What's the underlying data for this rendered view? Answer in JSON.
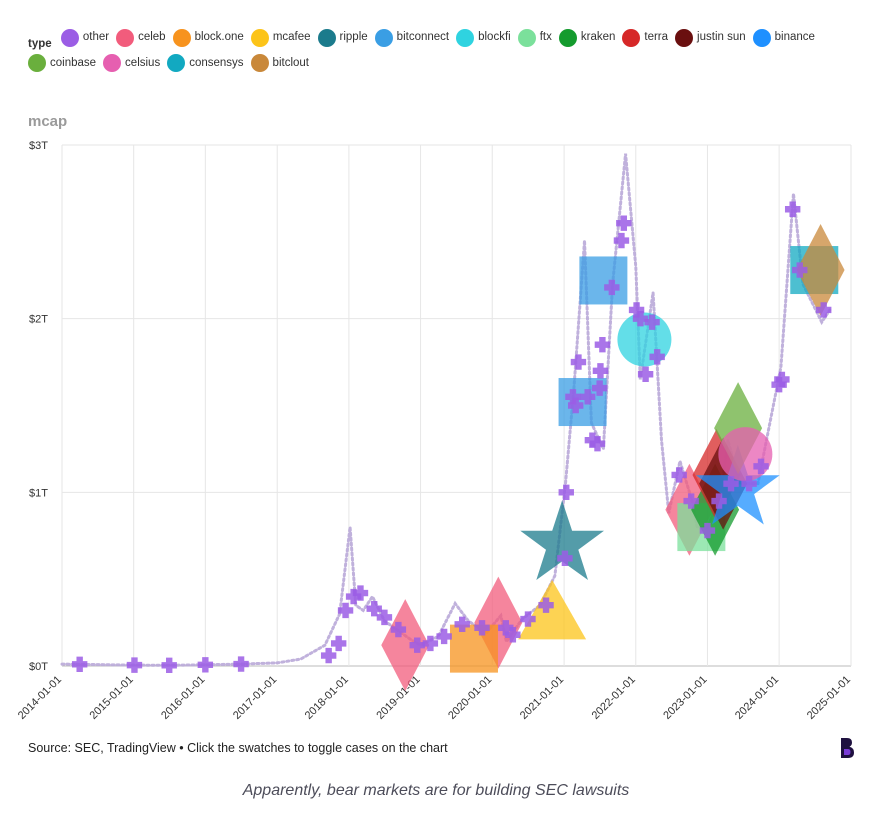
{
  "legend": {
    "title": "type",
    "items": [
      {
        "label": "other",
        "color": "#9b5de5"
      },
      {
        "label": "celeb",
        "color": "#f25c7c"
      },
      {
        "label": "block.one",
        "color": "#f7931e"
      },
      {
        "label": "mcafee",
        "color": "#fcc419"
      },
      {
        "label": "ripple",
        "color": "#1b7b8c"
      },
      {
        "label": "bitconnect",
        "color": "#3a9ee4"
      },
      {
        "label": "blockfi",
        "color": "#2fd3e0"
      },
      {
        "label": "ftx",
        "color": "#7be09b"
      },
      {
        "label": "kraken",
        "color": "#149b2e"
      },
      {
        "label": "terra",
        "color": "#d62828"
      },
      {
        "label": "justin sun",
        "color": "#6a0f0f"
      },
      {
        "label": "binance",
        "color": "#1e90ff"
      },
      {
        "label": "coinbase",
        "color": "#6aaf3d"
      },
      {
        "label": "celsius",
        "color": "#e65fb0"
      },
      {
        "label": "consensys",
        "color": "#12a9c1"
      },
      {
        "label": "bitclout",
        "color": "#c9883a"
      }
    ]
  },
  "chart_data": {
    "type": "scatter",
    "ylabel": "mcap",
    "y_ticks": [
      "$0T",
      "$1T",
      "$2T",
      "$3T"
    ],
    "ylim": [
      0,
      3
    ],
    "xlim": [
      "2014-01-01",
      "2025-01-01"
    ],
    "x_ticks": [
      "2014-01-01",
      "2015-01-01",
      "2016-01-01",
      "2017-01-01",
      "2018-01-01",
      "2019-01-01",
      "2020-01-01",
      "2021-01-01",
      "2022-01-01",
      "2023-01-01",
      "2024-01-01",
      "2025-01-01"
    ],
    "grid": true,
    "market_cap_line": [
      [
        "2014-01-01",
        0.011
      ],
      [
        "2014-07-01",
        0.008
      ],
      [
        "2015-01-01",
        0.005
      ],
      [
        "2015-07-01",
        0.004
      ],
      [
        "2016-01-01",
        0.007
      ],
      [
        "2016-07-01",
        0.011
      ],
      [
        "2017-01-01",
        0.018
      ],
      [
        "2017-05-01",
        0.04
      ],
      [
        "2017-09-01",
        0.12
      ],
      [
        "2017-11-15",
        0.3
      ],
      [
        "2018-01-07",
        0.8
      ],
      [
        "2018-02-05",
        0.35
      ],
      [
        "2018-03-15",
        0.32
      ],
      [
        "2018-05-01",
        0.4
      ],
      [
        "2018-07-01",
        0.26
      ],
      [
        "2018-09-01",
        0.21
      ],
      [
        "2018-11-15",
        0.15
      ],
      [
        "2019-01-01",
        0.12
      ],
      [
        "2019-04-01",
        0.17
      ],
      [
        "2019-06-26",
        0.36
      ],
      [
        "2019-09-01",
        0.26
      ],
      [
        "2019-12-01",
        0.19
      ],
      [
        "2020-02-14",
        0.29
      ],
      [
        "2020-03-13",
        0.14
      ],
      [
        "2020-06-01",
        0.27
      ],
      [
        "2020-09-01",
        0.35
      ],
      [
        "2020-11-15",
        0.52
      ],
      [
        "2021-01-08",
        1.05
      ],
      [
        "2021-02-20",
        1.6
      ],
      [
        "2021-04-15",
        2.45
      ],
      [
        "2021-05-20",
        1.4
      ],
      [
        "2021-07-20",
        1.25
      ],
      [
        "2021-09-05",
        2.2
      ],
      [
        "2021-11-10",
        2.95
      ],
      [
        "2022-01-01",
        2.3
      ],
      [
        "2022-01-24",
        1.65
      ],
      [
        "2022-03-30",
        2.15
      ],
      [
        "2022-05-12",
        1.3
      ],
      [
        "2022-06-18",
        0.88
      ],
      [
        "2022-08-14",
        1.18
      ],
      [
        "2022-10-15",
        0.95
      ],
      [
        "2022-11-10",
        0.8
      ],
      [
        "2023-01-01",
        0.8
      ],
      [
        "2023-03-10",
        0.98
      ],
      [
        "2023-04-15",
        1.3
      ],
      [
        "2023-06-15",
        1.05
      ],
      [
        "2023-09-15",
        1.05
      ],
      [
        "2023-11-15",
        1.4
      ],
      [
        "2024-01-10",
        1.72
      ],
      [
        "2024-03-14",
        2.72
      ],
      [
        "2024-05-01",
        2.2
      ],
      [
        "2024-08-05",
        1.98
      ],
      [
        "2024-09-15",
        2.05
      ]
    ],
    "cases": [
      {
        "type": "other",
        "marker": "cross",
        "points": [
          [
            "2014-04-01",
            0.01
          ],
          [
            "2015-01-05",
            0.005
          ],
          [
            "2015-07-01",
            0.004
          ],
          [
            "2016-01-01",
            0.007
          ],
          [
            "2016-07-01",
            0.011
          ],
          [
            "2017-09-20",
            0.06
          ],
          [
            "2017-11-10",
            0.13
          ],
          [
            "2017-12-15",
            0.32
          ],
          [
            "2018-01-25",
            0.4
          ],
          [
            "2018-03-01",
            0.42
          ],
          [
            "2018-05-10",
            0.33
          ],
          [
            "2018-07-01",
            0.28
          ],
          [
            "2018-09-10",
            0.21
          ],
          [
            "2018-12-15",
            0.12
          ],
          [
            "2019-02-20",
            0.13
          ],
          [
            "2019-05-01",
            0.17
          ],
          [
            "2019-08-01",
            0.24
          ],
          [
            "2019-11-10",
            0.22
          ],
          [
            "2020-03-10",
            0.22
          ],
          [
            "2020-04-15",
            0.18
          ],
          [
            "2020-07-01",
            0.27
          ],
          [
            "2020-10-01",
            0.35
          ],
          [
            "2021-01-12",
            1.0
          ],
          [
            "2021-01-05",
            0.62
          ],
          [
            "2021-02-15",
            1.55
          ],
          [
            "2021-03-01",
            1.5
          ],
          [
            "2021-03-15",
            1.75
          ],
          [
            "2021-05-01",
            1.55
          ],
          [
            "2021-05-25",
            1.3
          ],
          [
            "2021-06-20",
            1.28
          ],
          [
            "2021-07-01",
            1.6
          ],
          [
            "2021-07-05",
            1.7
          ],
          [
            "2021-07-15",
            1.85
          ],
          [
            "2021-09-01",
            2.18
          ],
          [
            "2021-11-01",
            2.55
          ],
          [
            "2021-10-20",
            2.45
          ],
          [
            "2022-01-05",
            2.05
          ],
          [
            "2022-01-25",
            2.0
          ],
          [
            "2022-02-20",
            1.68
          ],
          [
            "2022-03-25",
            1.98
          ],
          [
            "2022-04-20",
            1.78
          ],
          [
            "2022-08-10",
            1.1
          ],
          [
            "2022-10-10",
            0.95
          ],
          [
            "2023-01-01",
            0.78
          ],
          [
            "2023-03-01",
            0.95
          ],
          [
            "2023-05-01",
            1.05
          ],
          [
            "2023-08-01",
            1.05
          ],
          [
            "2023-10-01",
            1.15
          ],
          [
            "2024-01-01",
            1.62
          ],
          [
            "2024-01-15",
            1.65
          ],
          [
            "2024-03-10",
            2.63
          ],
          [
            "2024-04-15",
            2.28
          ],
          [
            "2024-08-15",
            2.05
          ]
        ]
      },
      {
        "type": "celeb",
        "marker": "diamond",
        "points": [
          [
            "2018-10-15",
            0.12
          ],
          [
            "2020-02-01",
            0.25
          ],
          [
            "2022-10-01",
            0.9
          ]
        ]
      },
      {
        "type": "block.one",
        "marker": "square",
        "points": [
          [
            "2019-09-30",
            0.1
          ]
        ]
      },
      {
        "type": "mcafee",
        "marker": "triangle",
        "points": [
          [
            "2020-11-01",
            0.3
          ]
        ]
      },
      {
        "type": "ripple",
        "marker": "star",
        "points": [
          [
            "2020-12-22",
            0.7
          ]
        ]
      },
      {
        "type": "bitconnect",
        "marker": "square",
        "points": [
          [
            "2021-04-05",
            1.52
          ],
          [
            "2021-07-20",
            2.22
          ]
        ]
      },
      {
        "type": "blockfi",
        "marker": "circle",
        "points": [
          [
            "2022-02-14",
            1.88
          ]
        ]
      },
      {
        "type": "ftx",
        "marker": "square",
        "points": [
          [
            "2022-12-01",
            0.8
          ]
        ]
      },
      {
        "type": "kraken",
        "marker": "diamond",
        "points": [
          [
            "2023-02-09",
            0.9
          ]
        ]
      },
      {
        "type": "terra",
        "marker": "diamond",
        "points": [
          [
            "2023-02-16",
            1.1
          ]
        ]
      },
      {
        "type": "justin sun",
        "marker": "diamond",
        "points": [
          [
            "2023-03-22",
            1.05
          ]
        ]
      },
      {
        "type": "binance",
        "marker": "star",
        "points": [
          [
            "2023-06-05",
            1.02
          ]
        ]
      },
      {
        "type": "coinbase",
        "marker": "diamond",
        "points": [
          [
            "2023-06-06",
            1.37
          ]
        ]
      },
      {
        "type": "celsius",
        "marker": "circle",
        "points": [
          [
            "2023-07-13",
            1.22
          ]
        ]
      },
      {
        "type": "consensys",
        "marker": "square",
        "points": [
          [
            "2024-06-28",
            2.28
          ]
        ]
      },
      {
        "type": "bitclout",
        "marker": "diamond",
        "points": [
          [
            "2024-07-30",
            2.28
          ]
        ]
      }
    ]
  },
  "footer": {
    "source": "Source: SEC, TradingView • Click the swatches to toggle cases on the chart",
    "caption": "Apparently, bear markets are for building SEC lawsuits"
  }
}
